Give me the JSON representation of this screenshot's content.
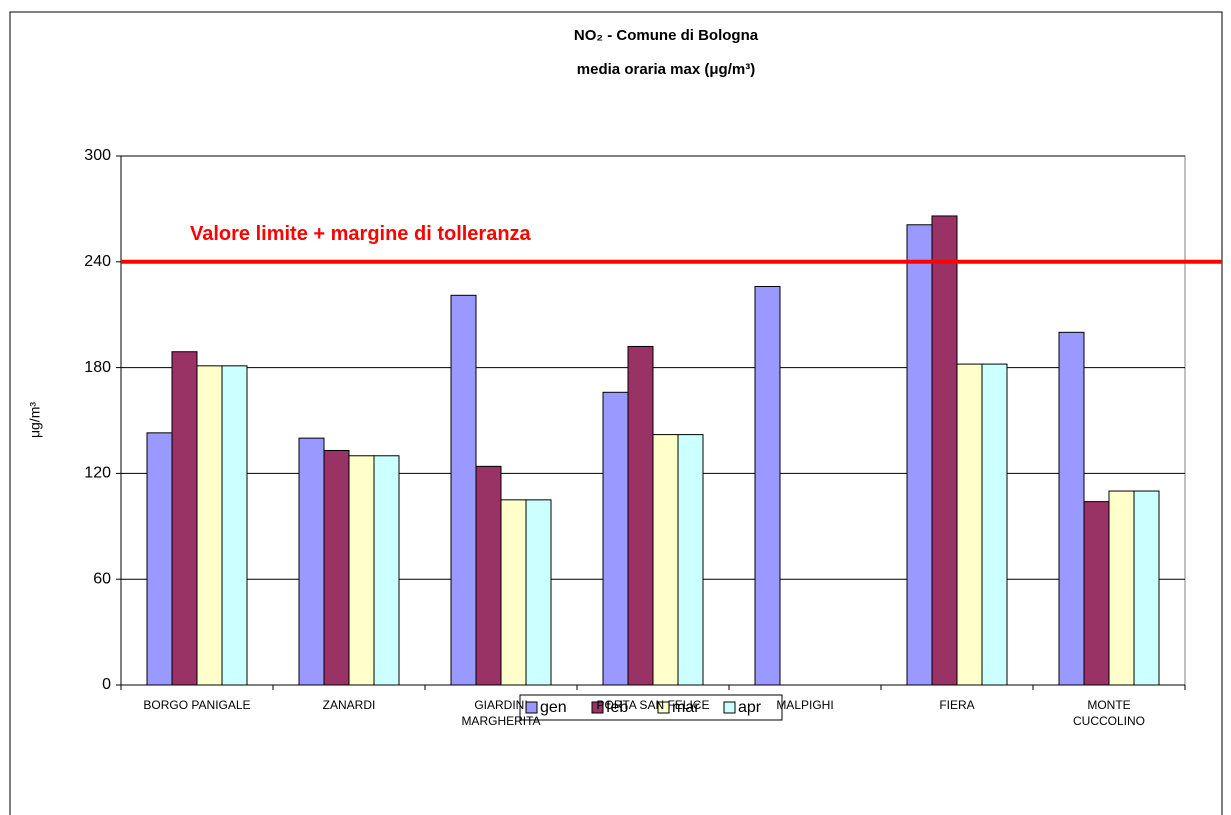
{
  "chart_data": {
    "type": "bar",
    "title": "NO₂ - Comune di Bologna",
    "subtitle": "media oraria max  (μg/m³)",
    "y_label": "μg/m³",
    "categories": [
      "BORGO PANIGALE",
      "ZANARDI",
      "GIARDINI\nMARGHERITA",
      "PORTA SAN FELICE",
      "MALPIGHI",
      "FIERA",
      "MONTE\nCUCCOLINO"
    ],
    "series": [
      {
        "name": "gen",
        "color": "#9999ff",
        "values": [
          143,
          140,
          221,
          166,
          226,
          261,
          200
        ]
      },
      {
        "name": "feb",
        "color": "#993366",
        "values": [
          189,
          133,
          124,
          192,
          null,
          266,
          104
        ]
      },
      {
        "name": "mar",
        "color": "#ffffcc",
        "values": [
          181,
          130,
          105,
          142,
          null,
          182,
          110
        ]
      },
      {
        "name": "apr",
        "color": "#ccffff",
        "values": [
          181,
          130,
          105,
          142,
          null,
          182,
          110
        ]
      }
    ],
    "ylim": [
      0,
      300
    ],
    "yticks": [
      0,
      60,
      120,
      180,
      240,
      300
    ],
    "grid": true,
    "limit": {
      "value": 240,
      "label": "Valore limite + margine di tolleranza",
      "color": "#ff0000"
    },
    "legend": "bottom"
  }
}
